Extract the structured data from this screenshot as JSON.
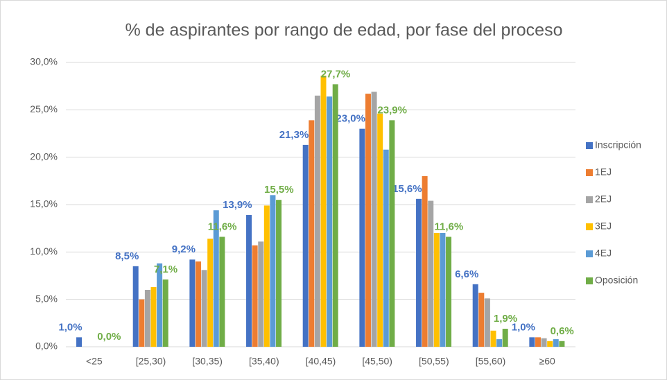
{
  "chart_data": {
    "type": "bar",
    "title": "% de aspirantes por rango de edad, por fase del proceso",
    "categories": [
      "<25",
      "[25,30)",
      "[30,35)",
      "[35,40)",
      "[40,45)",
      "[45,50)",
      "[50,55)",
      "[55,60)",
      "≥60"
    ],
    "series": [
      {
        "name": "Inscripción",
        "color": "#4472c4",
        "values": [
          1.0,
          8.5,
          9.2,
          13.9,
          21.3,
          23.0,
          15.6,
          6.6,
          1.0
        ],
        "value_labels": [
          "1,0%",
          "8,5%",
          "9,2%",
          "13,9%",
          "21,3%",
          "23,0%",
          "15,6%",
          "6,6%",
          "1,0%"
        ]
      },
      {
        "name": "1EJ",
        "color": "#ed7d31",
        "values": [
          0,
          5.0,
          9.0,
          10.7,
          23.9,
          26.7,
          18.0,
          5.7,
          1.0
        ]
      },
      {
        "name": "2EJ",
        "color": "#a5a5a5",
        "values": [
          0,
          6.0,
          8.1,
          11.1,
          26.5,
          26.9,
          15.4,
          5.1,
          0.9
        ]
      },
      {
        "name": "3EJ",
        "color": "#ffc000",
        "values": [
          0,
          6.3,
          11.4,
          14.9,
          28.6,
          24.6,
          12.0,
          1.7,
          0.6
        ]
      },
      {
        "name": "4EJ",
        "color": "#5b9bd5",
        "values": [
          0,
          8.8,
          14.4,
          16.0,
          26.4,
          20.8,
          12.0,
          0.8,
          0.8
        ]
      },
      {
        "name": "Oposición",
        "color": "#70ad47",
        "values": [
          0.0,
          7.1,
          11.6,
          15.5,
          27.7,
          23.9,
          11.6,
          1.9,
          0.6
        ],
        "value_labels": [
          "0,0%",
          "7,1%",
          "11,6%",
          "15,5%",
          "27,7%",
          "23,9%",
          "11,6%",
          "1,9%",
          "0,6%"
        ]
      }
    ],
    "ylim": [
      0,
      30
    ],
    "yticks": [
      {
        "value": 0,
        "label": "0,0%"
      },
      {
        "value": 5,
        "label": "5,0%"
      },
      {
        "value": 10,
        "label": "10,0%"
      },
      {
        "value": 15,
        "label": "15,0%"
      },
      {
        "value": 20,
        "label": "20,0%"
      },
      {
        "value": 25,
        "label": "25,0%"
      },
      {
        "value": 30,
        "label": "30,0%"
      }
    ],
    "grid": true,
    "legend": "right"
  }
}
